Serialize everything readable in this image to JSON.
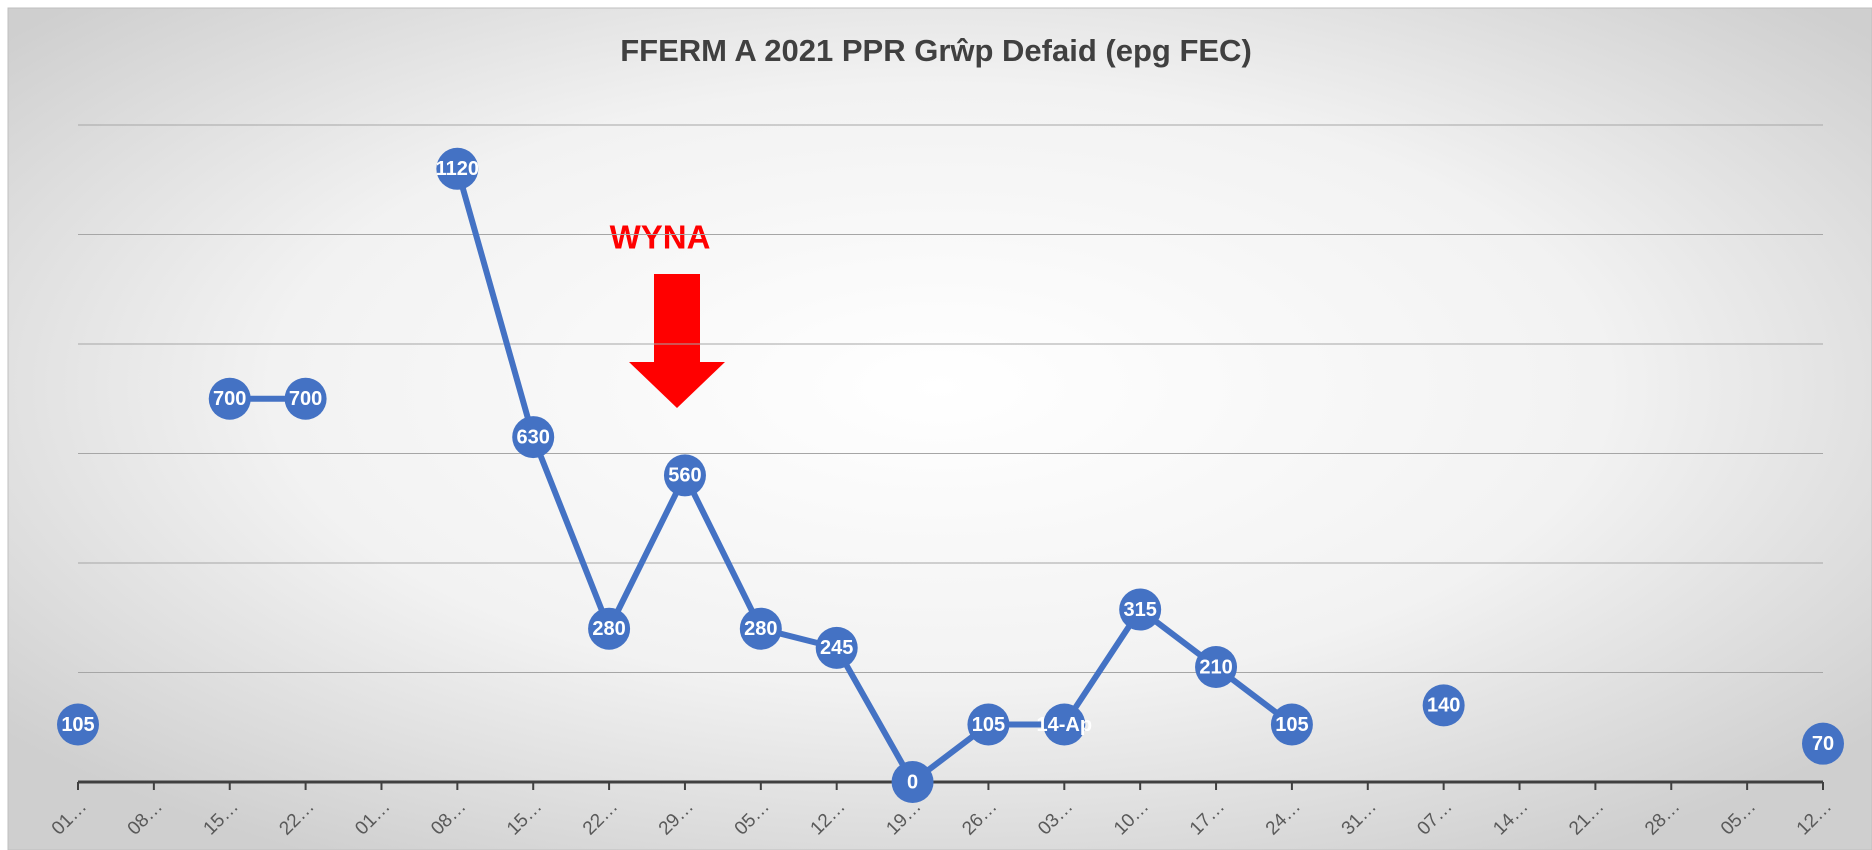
{
  "chart_data": {
    "type": "line",
    "title": "FFERM A 2021 PPR Grŵp Defaid (epg FEC)",
    "annotation": "WYNA",
    "categories": [
      "01…",
      "08…",
      "15…",
      "22…",
      "01…",
      "08…",
      "15…",
      "22…",
      "29…",
      "05…",
      "12…",
      "19…",
      "26…",
      "03…",
      "10…",
      "17…",
      "24…",
      "31…",
      "07…",
      "14…",
      "21…",
      "28…",
      "05…",
      "12…"
    ],
    "series": [
      {
        "name": "epg FEC",
        "color": "#4472c4",
        "values": [
          105,
          null,
          700,
          700,
          null,
          1120,
          630,
          280,
          560,
          280,
          245,
          0,
          105,
          105,
          315,
          210,
          105,
          null,
          140,
          null,
          null,
          null,
          null,
          70
        ],
        "value_labels": [
          "105",
          null,
          "700",
          "700",
          null,
          "1120",
          "630",
          "280",
          "560",
          "280",
          "245",
          "0",
          "105",
          "14-Ap",
          "315",
          "210",
          "105",
          null,
          "140",
          null,
          null,
          null,
          null,
          "70"
        ]
      }
    ],
    "ylim": [
      0,
      1200
    ],
    "yticks": [
      0,
      200,
      400,
      600,
      800,
      1000,
      1200
    ],
    "grid": true
  }
}
